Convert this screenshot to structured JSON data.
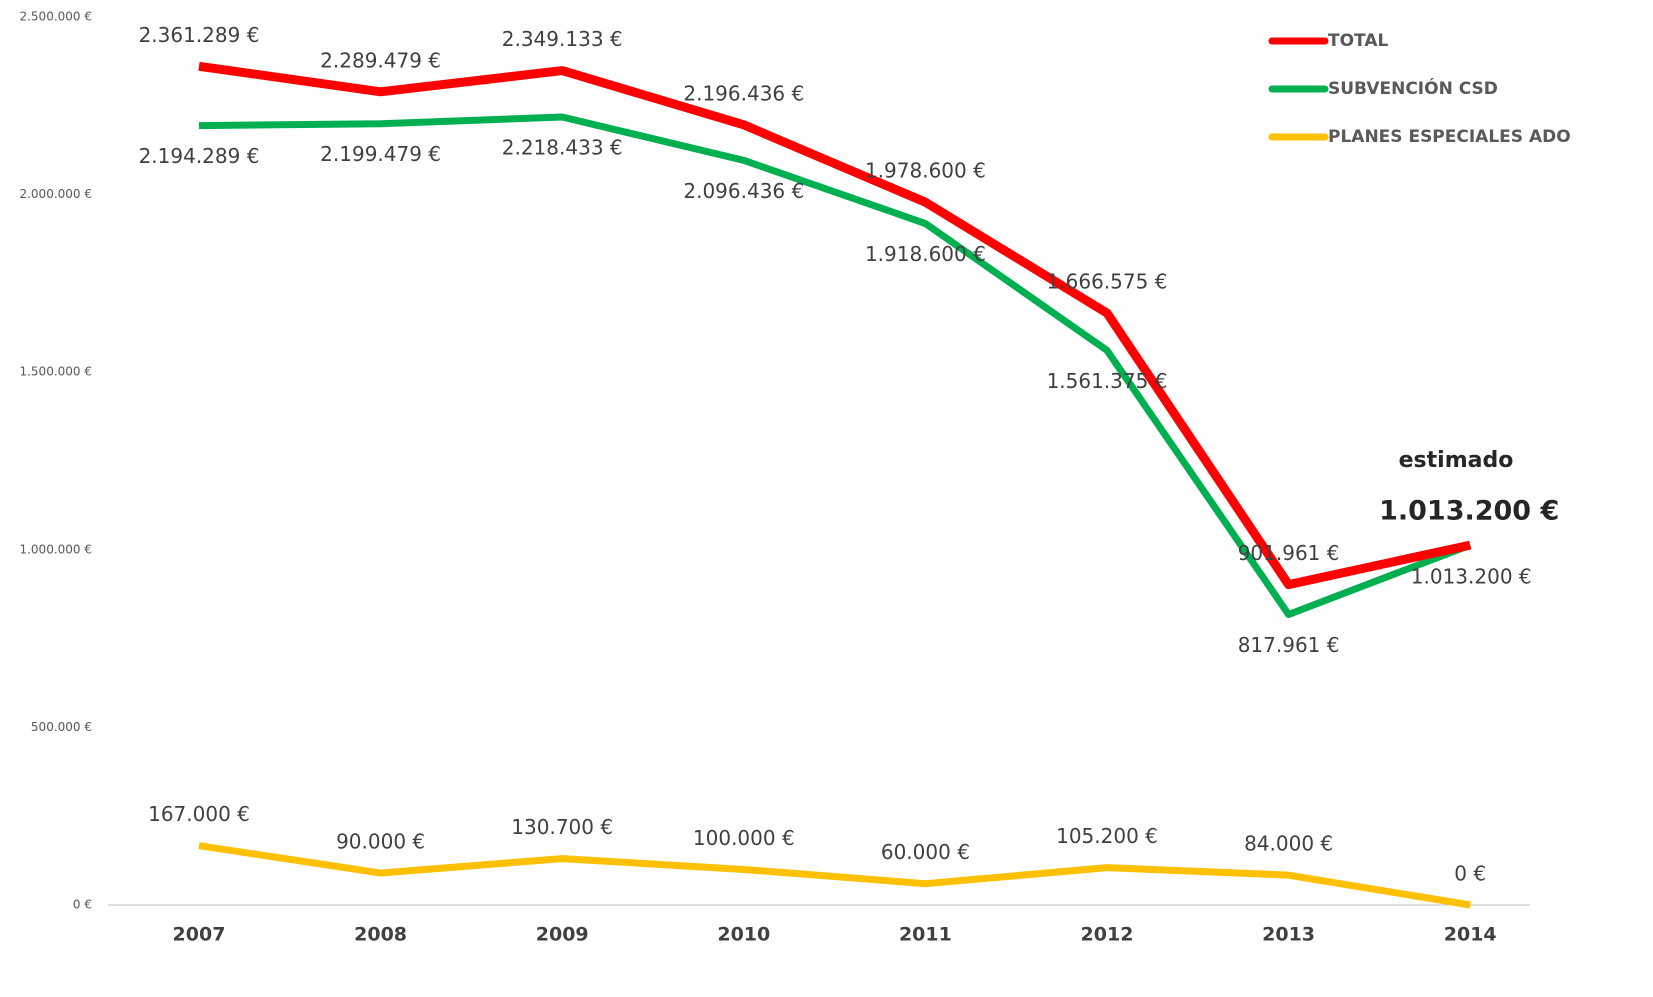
{
  "chart_data": {
    "type": "line",
    "categories": [
      "2007",
      "2008",
      "2009",
      "2010",
      "2011",
      "2012",
      "2013",
      "2014"
    ],
    "series": [
      {
        "name": "TOTAL",
        "color": "#ff0000",
        "values": [
          2361289,
          2289479,
          2349133,
          2196436,
          1978600,
          1666575,
          901961,
          1013200
        ],
        "value_labels": [
          "2.361.289 €",
          "2.289.479 €",
          "2.349.133 €",
          "2.196.436 €",
          "1.978.600 €",
          "1.666.575 €",
          "901.961 €",
          "1.013.200 €"
        ]
      },
      {
        "name": "SUBVENCIÓN CSD",
        "color": "#00b050",
        "values": [
          2194289,
          2199479,
          2218433,
          2096436,
          1918600,
          1561375,
          817961,
          1013200
        ],
        "value_labels": [
          "2.194.289 €",
          "2.199.479 €",
          "2.218.433 €",
          "2.096.436 €",
          "1.918.600 €",
          "1.561.375 €",
          "817.961 €",
          "1.013.200 €"
        ]
      },
      {
        "name": "PLANES ESPECIALES ADO",
        "color": "#ffc000",
        "values": [
          167000,
          90000,
          130700,
          100000,
          60000,
          105200,
          84000,
          0
        ],
        "value_labels": [
          "167.000 €",
          "90.000 €",
          "130.700 €",
          "100.000 €",
          "60.000 €",
          "105.200 €",
          "84.000 €",
          "0 €"
        ]
      }
    ],
    "annotations": [
      "estimado"
    ],
    "ylim": [
      0,
      2500000
    ],
    "yticks": [
      {
        "value": 0,
        "label": "0 €"
      },
      {
        "value": 500000,
        "label": "500.000 €"
      },
      {
        "value": 1000000,
        "label": "1.000.000 €"
      },
      {
        "value": 1500000,
        "label": "1.500.000 €"
      },
      {
        "value": 2000000,
        "label": "2.000.000 €"
      },
      {
        "value": 2500000,
        "label": "2.500.000 €"
      }
    ],
    "grid": false,
    "legend": "top-right"
  }
}
